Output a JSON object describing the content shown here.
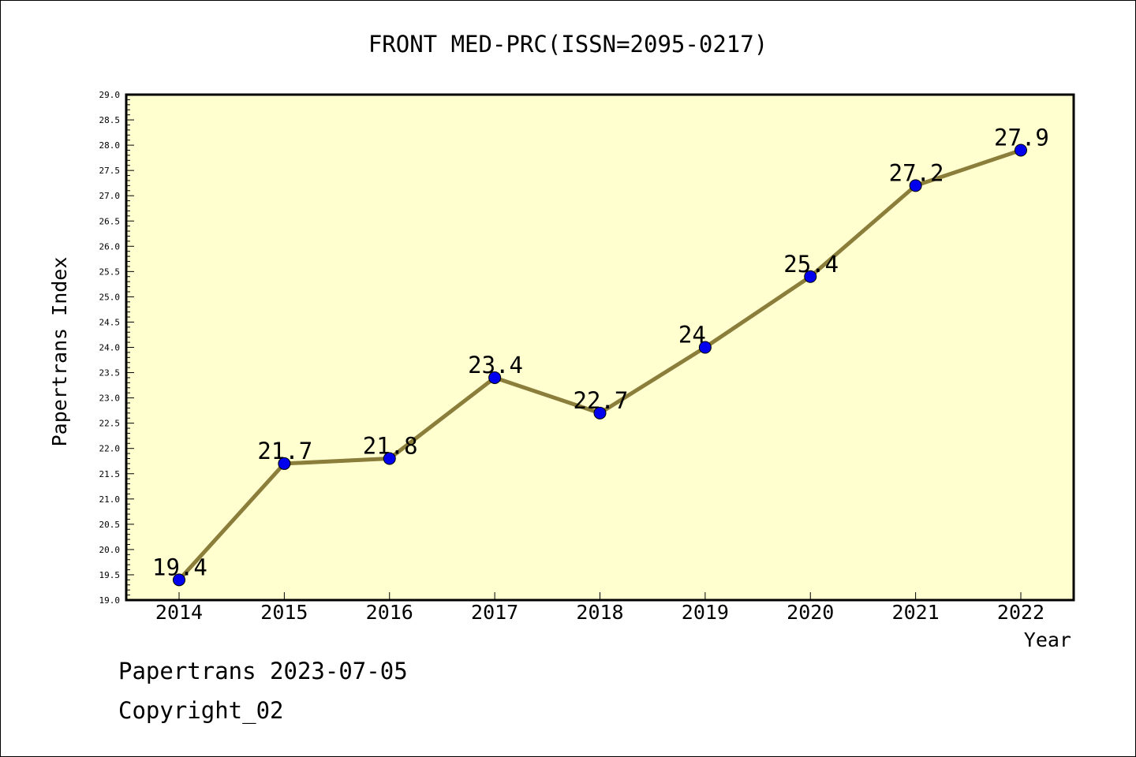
{
  "chart_data": {
    "type": "line",
    "title": "FRONT MED-PRC(ISSN=2095-0217)",
    "xlabel": "Year",
    "ylabel": "Papertrans Index",
    "categories": [
      "2014",
      "2015",
      "2016",
      "2017",
      "2018",
      "2019",
      "2020",
      "2021",
      "2022"
    ],
    "values": [
      19.4,
      21.7,
      21.8,
      23.4,
      22.7,
      24,
      25.4,
      27.2,
      27.9
    ],
    "data_labels": [
      "19.4",
      "21.7",
      "21.8",
      "23.4",
      "22.7",
      "24",
      "25.4",
      "27.2",
      "27.9"
    ],
    "ylim": [
      19.0,
      29.0
    ],
    "y_ticks": [
      "19.0",
      "19.5",
      "20.0",
      "20.5",
      "21.0",
      "21.5",
      "22.0",
      "22.5",
      "23.0",
      "23.5",
      "24.0",
      "24.5",
      "25.0",
      "25.5",
      "26.0",
      "26.5",
      "27.0",
      "27.5",
      "28.0",
      "28.5",
      "29.0"
    ],
    "grid": false,
    "colors": {
      "plot_background": "#ffffd0",
      "line": "#8b7d3a",
      "marker": "#0000ee"
    }
  },
  "footer": {
    "line1": "Papertrans 2023-07-05",
    "line2": "Copyright_02"
  }
}
